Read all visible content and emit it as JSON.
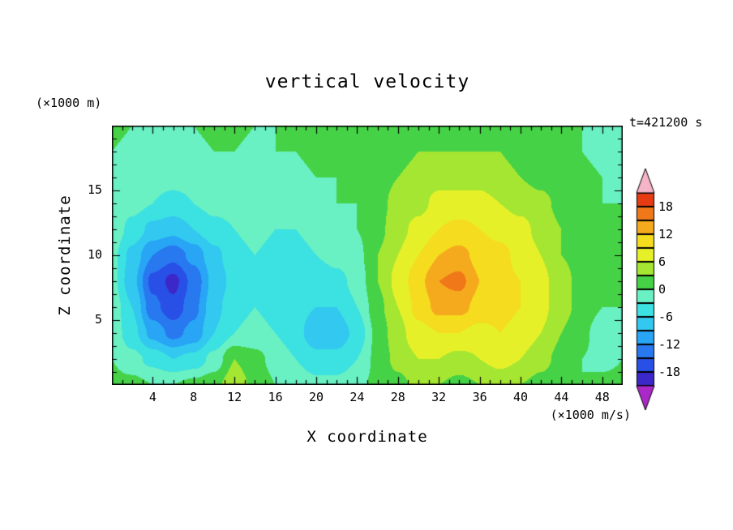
{
  "title": "vertical velocity",
  "time_label": "t=421200 s",
  "x_axis": {
    "label": "X coordinate",
    "ticks": [
      4,
      8,
      12,
      16,
      20,
      24,
      28,
      32,
      36,
      40,
      44,
      48
    ],
    "range": [
      0,
      50
    ]
  },
  "z_axis": {
    "label": "Z coordinate",
    "unit": "(×1000 m)",
    "ticks": [
      5,
      10,
      15
    ],
    "range": [
      0,
      20
    ]
  },
  "colorbar": {
    "unit": "(×1000 m/s)",
    "labels": [
      {
        "text": "18",
        "value": 18
      },
      {
        "text": "12",
        "value": 12
      },
      {
        "text": "6",
        "value": 6
      },
      {
        "text": "0",
        "value": 0
      },
      {
        "text": "-6",
        "value": -6
      },
      {
        "text": "-12",
        "value": -12
      },
      {
        "text": "-18",
        "value": -18
      }
    ],
    "levels": [
      -21,
      -18,
      -15,
      -12,
      -9,
      -6,
      -3,
      0,
      3,
      6,
      9,
      12,
      15,
      18,
      21
    ],
    "band_colors": [
      "#3c28c8",
      "#2850e6",
      "#2878f0",
      "#28a5f5",
      "#32c8f0",
      "#3ce1e1",
      "#69f0c3",
      "#46d246",
      "#a5e632",
      "#e6f028",
      "#f5dc1e",
      "#f5aa1e",
      "#f07819",
      "#e63c14"
    ],
    "under_color": "#aa28c8",
    "over_color": "#f5b4c8"
  },
  "chart_data": {
    "type": "heatmap",
    "title": "vertical velocity",
    "xlabel": "X coordinate",
    "ylabel": "Z coordinate",
    "x_range": [
      0,
      50
    ],
    "z_range": [
      0,
      20
    ],
    "contour_interval": 3,
    "value_range": [
      -21,
      21
    ],
    "x": [
      0,
      2,
      4,
      6,
      8,
      10,
      12,
      14,
      16,
      18,
      20,
      22,
      24,
      26,
      28,
      30,
      32,
      34,
      36,
      38,
      40,
      42,
      44,
      46,
      48,
      50
    ],
    "z": [
      0,
      2,
      4,
      6,
      8,
      10,
      12,
      14,
      16,
      18,
      20
    ],
    "values": [
      [
        1,
        1,
        0,
        0,
        1,
        2,
        5,
        2,
        0,
        -1,
        -2,
        -2,
        -1,
        1,
        2,
        4,
        3,
        2,
        3,
        4,
        3,
        2,
        1,
        0,
        1,
        1
      ],
      [
        0,
        -2,
        -4,
        -6,
        -5,
        -2,
        3,
        1,
        -1,
        -3,
        -5,
        -5,
        -3,
        1,
        4,
        6,
        6,
        5,
        6,
        7,
        6,
        4,
        2,
        0,
        -1,
        0
      ],
      [
        -1,
        -5,
        -10,
        -13,
        -11,
        -6,
        -3,
        -2,
        -3,
        -5,
        -8,
        -8,
        -5,
        1,
        5,
        8,
        9,
        9,
        8,
        9,
        8,
        6,
        3,
        1,
        -2,
        -1
      ],
      [
        -1,
        -6,
        -14,
        -17,
        -13,
        -7,
        -4,
        -3,
        -4,
        -5,
        -6,
        -6,
        -3,
        2,
        6,
        10,
        13,
        13,
        11,
        10,
        9,
        7,
        4,
        2,
        0,
        0
      ],
      [
        -2,
        -8,
        -16,
        -19,
        -14,
        -8,
        -5,
        -4,
        -4,
        -5,
        -5,
        -4,
        -2,
        3,
        7,
        11,
        15,
        16,
        12,
        10,
        9,
        7,
        4,
        2,
        1,
        1
      ],
      [
        -2,
        -7,
        -12,
        -14,
        -11,
        -7,
        -4,
        -3,
        -4,
        -4,
        -3,
        -2,
        -1,
        3,
        6,
        9,
        12,
        13,
        11,
        10,
        8,
        6,
        3,
        2,
        1,
        1
      ],
      [
        -1,
        -4,
        -7,
        -8,
        -6,
        -4,
        -3,
        -2,
        -3,
        -3,
        -2,
        -1,
        0,
        2,
        5,
        7,
        9,
        10,
        9,
        8,
        7,
        5,
        3,
        1,
        1,
        0
      ],
      [
        -1,
        -2,
        -3,
        -4,
        -3,
        -2,
        -2,
        -1,
        -2,
        -2,
        -1,
        0,
        0,
        2,
        4,
        5,
        7,
        7,
        7,
        6,
        5,
        4,
        2,
        1,
        0,
        0
      ],
      [
        0,
        -1,
        -2,
        -2,
        -2,
        -1,
        -1,
        -1,
        -1,
        -1,
        0,
        0,
        1,
        2,
        3,
        4,
        5,
        5,
        5,
        4,
        3,
        2,
        1,
        1,
        0,
        -1
      ],
      [
        0,
        -1,
        -1,
        -1,
        -1,
        0,
        0,
        -1,
        0,
        0,
        1,
        1,
        1,
        1,
        2,
        3,
        3,
        3,
        3,
        3,
        2,
        2,
        1,
        0,
        -1,
        -1
      ],
      [
        1,
        0,
        0,
        0,
        0,
        1,
        1,
        0,
        0,
        1,
        1,
        1,
        1,
        1,
        2,
        2,
        2,
        2,
        2,
        2,
        2,
        1,
        1,
        0,
        -1,
        -1
      ]
    ]
  }
}
